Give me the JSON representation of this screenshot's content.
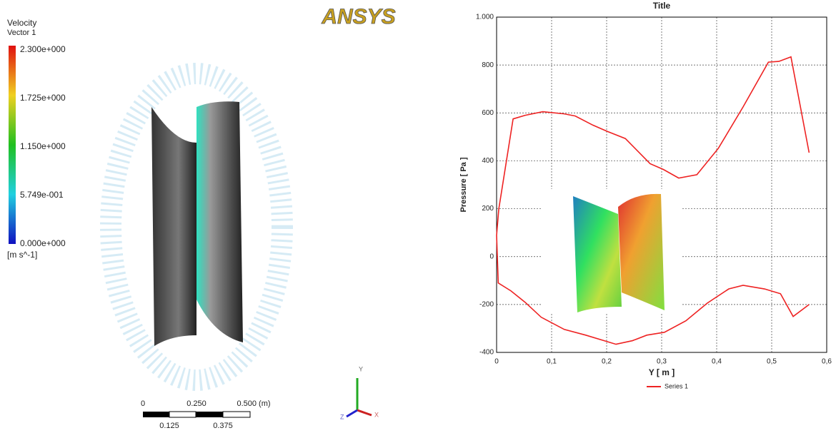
{
  "cfd_view": {
    "logo": "ANSYS",
    "legend_title": "Velocity",
    "legend_subtitle": "Vector 1",
    "legend_labels": [
      "2.300e+000",
      "1.725e+000",
      "1.150e+000",
      "5.749e-001",
      "0.000e+000"
    ],
    "legend_unit": "[m s^-1]",
    "scale_top": [
      "0",
      "0.250",
      "0.500 (m)"
    ],
    "scale_bottom": [
      "0.125",
      "0.375"
    ],
    "axes": [
      "Y",
      "X",
      "Z"
    ]
  },
  "chart_data": {
    "type": "line",
    "title": "Title",
    "xlabel": "Y [ m ]",
    "ylabel": "Pressure [ Pa ]",
    "grid": true,
    "legend": "bottom",
    "xlim": [
      0,
      0.6
    ],
    "ylim": [
      -400,
      1000
    ],
    "xticks": [
      0,
      {
        "value": 0.1,
        "label": "0,1"
      },
      {
        "value": 0.2,
        "label": "0,2"
      },
      {
        "value": 0.3,
        "label": "0,3"
      },
      {
        "value": 0.4,
        "label": "0,4"
      },
      {
        "value": 0.5,
        "label": "0,5"
      },
      {
        "value": 0.6,
        "label": "0,6"
      }
    ],
    "yticks": [
      {
        "value": 1000,
        "label": "1.000"
      },
      800,
      600,
      400,
      200,
      0,
      -200,
      -400
    ],
    "series": [
      {
        "name": "Series 1",
        "color": "#ee2222",
        "x": [
          0.568,
          0.535,
          0.513,
          0.494,
          0.448,
          0.403,
          0.364,
          0.331,
          0.303,
          0.279,
          0.234,
          0.201,
          0.175,
          0.143,
          0.123,
          0.084,
          0.052,
          0.03,
          0.004,
          0,
          0.003,
          0.026,
          0.052,
          0.081,
          0.123,
          0.162,
          0.217,
          0.247,
          0.273,
          0.305,
          0.344,
          0.383,
          0.422,
          0.448,
          0.487,
          0.516,
          0.539,
          0.568
        ],
        "values": [
          434,
          834,
          815,
          812,
          625,
          452,
          342,
          328,
          364,
          388,
          493,
          523,
          549,
          587,
          596,
          605,
          590,
          575,
          199,
          89,
          -110,
          -143,
          -191,
          -253,
          -304,
          -328,
          -366,
          -351,
          -328,
          -316,
          -268,
          -194,
          -135,
          -120,
          -135,
          -155,
          -250,
          -200
        ]
      }
    ]
  }
}
